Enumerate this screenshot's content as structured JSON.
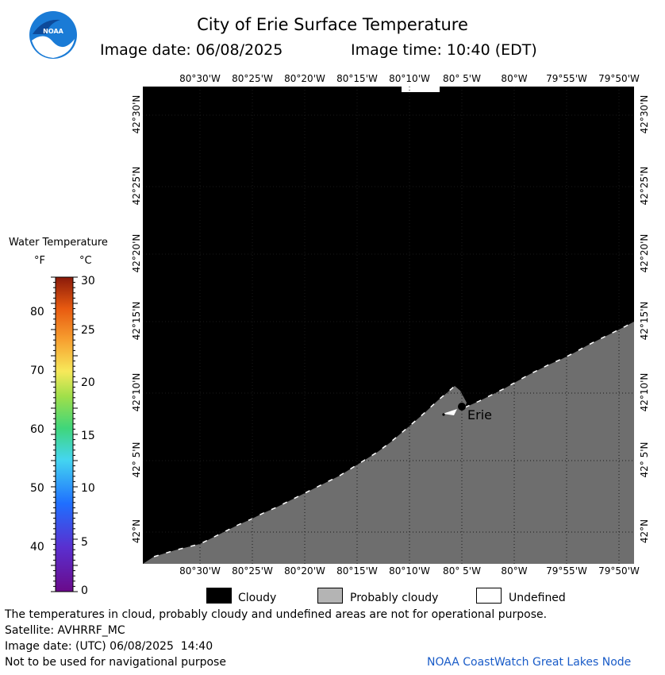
{
  "header": {
    "title": "City of Erie Surface Temperature",
    "image_date": "Image date: 06/08/2025",
    "image_time": "Image time: 10:40 (EDT)"
  },
  "logo": {
    "text": "NOAA"
  },
  "map": {
    "lon_labels": [
      "80°30'W",
      "80°25'W",
      "80°20'W",
      "80°15'W",
      "80°10'W",
      "80° 5'W",
      "80°W",
      "79°55'W",
      "79°50'W"
    ],
    "lat_labels": [
      "42°30'N",
      "42°25'N",
      "42°20'N",
      "42°15'N",
      "42°10'N",
      "42° 5'N",
      "42°N"
    ],
    "city_label": "Erie",
    "colors": {
      "cloudy": "#000000",
      "probably_cloudy": "#6e6e6e",
      "undefined": "#ffffff",
      "grid": "#1a1a1a"
    }
  },
  "legend": {
    "title": "Water Temperature",
    "unit_f": "°F",
    "unit_c": "°C",
    "f_ticks": [
      "80",
      "70",
      "60",
      "50",
      "40"
    ],
    "c_ticks": [
      "30",
      "25",
      "20",
      "15",
      "10",
      "5",
      "0"
    ]
  },
  "key": {
    "cloudy": "Cloudy",
    "probably_cloudy": "Probably cloudy",
    "undefined": "Undefined"
  },
  "footer": {
    "note": "The temperatures in cloud, probably cloudy and undefined areas are not for operational purpose.",
    "satellite": "Satellite: AVHRRF_MC",
    "image_date_utc": "Image date: (UTC) 06/08/2025  14:40",
    "nav_warning": "Not to be used for navigational purpose",
    "credit": "NOAA CoastWatch Great Lakes Node"
  }
}
